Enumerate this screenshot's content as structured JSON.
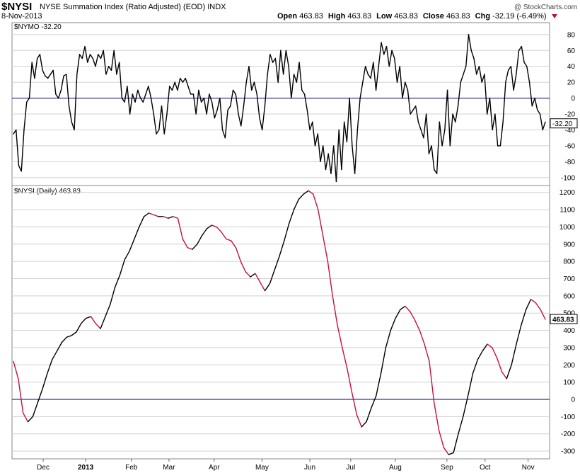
{
  "header": {
    "symbol": "$NYSI",
    "description": "NYSE Summation Index (Ratio Adjusted) (EOD)",
    "exchange": "INDX",
    "date": "8-Nov-2013",
    "open_label": "Open",
    "open": "463.83",
    "high_label": "High",
    "high": "463.83",
    "low_label": "Low",
    "low": "463.83",
    "close_label": "Close",
    "close": "463.83",
    "chg_label": "Chg",
    "chg": "-32.19 (-6.49%)",
    "watermark": "@ StockCharts.com"
  },
  "colors": {
    "line": "#000000",
    "down": "#c8103f",
    "zero": "#000066",
    "grid": "#d0d0d0"
  },
  "chart_data": [
    {
      "type": "line",
      "title": "$NYMO -32.20",
      "series": [
        {
          "name": "$NYMO",
          "last": -32.2,
          "values": [
            -45,
            -40,
            -85,
            -92,
            -40,
            -5,
            0,
            45,
            25,
            50,
            55,
            35,
            28,
            25,
            30,
            35,
            5,
            0,
            10,
            28,
            30,
            -10,
            -30,
            -40,
            30,
            55,
            50,
            65,
            45,
            55,
            50,
            40,
            55,
            50,
            60,
            30,
            40,
            35,
            60,
            30,
            45,
            0,
            -5,
            15,
            -20,
            5,
            -5,
            10,
            0,
            -5,
            5,
            15,
            0,
            -20,
            -45,
            -40,
            -10,
            -45,
            -20,
            15,
            10,
            20,
            10,
            25,
            20,
            25,
            15,
            5,
            5,
            -20,
            10,
            -5,
            0,
            -20,
            5,
            -5,
            -25,
            -15,
            0,
            -40,
            -50,
            -15,
            -10,
            10,
            5,
            -20,
            -35,
            -10,
            20,
            40,
            10,
            20,
            5,
            -25,
            -40,
            -10,
            30,
            55,
            45,
            50,
            20,
            60,
            30,
            60,
            40,
            0,
            30,
            20,
            45,
            10,
            5,
            -15,
            -40,
            -30,
            -60,
            -45,
            -80,
            -60,
            -90,
            -70,
            -95,
            -60,
            -105,
            -40,
            -90,
            -30,
            -55,
            0,
            -60,
            -95,
            -40,
            0,
            20,
            40,
            30,
            25,
            45,
            10,
            40,
            70,
            55,
            65,
            40,
            60,
            50,
            20,
            40,
            0,
            20,
            10,
            -20,
            -15,
            -10,
            -30,
            -40,
            -50,
            -20,
            -70,
            -60,
            -90,
            -95,
            -30,
            -60,
            -40,
            10,
            -60,
            -20,
            -30,
            -10,
            20,
            30,
            40,
            80,
            60,
            50,
            30,
            40,
            20,
            30,
            -20,
            0,
            -40,
            -20,
            -60,
            -60,
            -30,
            20,
            35,
            40,
            10,
            30,
            60,
            65,
            45,
            40,
            20,
            -10,
            0,
            -15,
            -20,
            -40,
            -30
          ]
        }
      ],
      "ylim": [
        -110,
        95
      ],
      "yticks": [
        80,
        60,
        40,
        20,
        0,
        -20,
        -40,
        -60,
        -80,
        -100
      ],
      "last_label": "-32.20"
    },
    {
      "type": "line",
      "title": "$NYSI (Daily) 463.83",
      "series": [
        {
          "name": "$NYSI",
          "last": 463.83,
          "values": [
            220,
            120,
            -80,
            -130,
            -100,
            -20,
            60,
            150,
            230,
            280,
            330,
            360,
            370,
            390,
            440,
            470,
            480,
            440,
            410,
            480,
            550,
            650,
            720,
            810,
            860,
            930,
            1000,
            1060,
            1080,
            1070,
            1060,
            1060,
            1050,
            1060,
            1050,
            930,
            880,
            870,
            900,
            950,
            990,
            1010,
            1000,
            970,
            930,
            920,
            880,
            800,
            740,
            710,
            730,
            680,
            630,
            670,
            750,
            830,
            920,
            1020,
            1100,
            1160,
            1190,
            1210,
            1190,
            1100,
            950,
            800,
            600,
            430,
            300,
            180,
            40,
            -90,
            -160,
            -130,
            -50,
            20,
            150,
            300,
            400,
            470,
            520,
            540,
            510,
            460,
            400,
            320,
            220,
            -20,
            -180,
            -280,
            -320,
            -310,
            -200,
            -100,
            20,
            150,
            230,
            280,
            320,
            300,
            240,
            160,
            120,
            200,
            320,
            430,
            520,
            580,
            560,
            520,
            463.83
          ]
        }
      ],
      "ylim": [
        -345,
        1240
      ],
      "yticks": [
        1200,
        1100,
        1000,
        900,
        800,
        700,
        600,
        500,
        400,
        300,
        200,
        100,
        0,
        -100,
        -200,
        -300
      ],
      "last_label": "463.83"
    }
  ],
  "x_axis": {
    "labels": [
      "Dec",
      "2013",
      "Feb",
      "Mar",
      "Apr",
      "May",
      "Jun",
      "Jul",
      "Aug",
      "Sep",
      "Oct",
      "Nov"
    ],
    "positions": [
      0.058,
      0.137,
      0.222,
      0.292,
      0.376,
      0.465,
      0.554,
      0.63,
      0.713,
      0.809,
      0.88,
      0.96
    ]
  }
}
